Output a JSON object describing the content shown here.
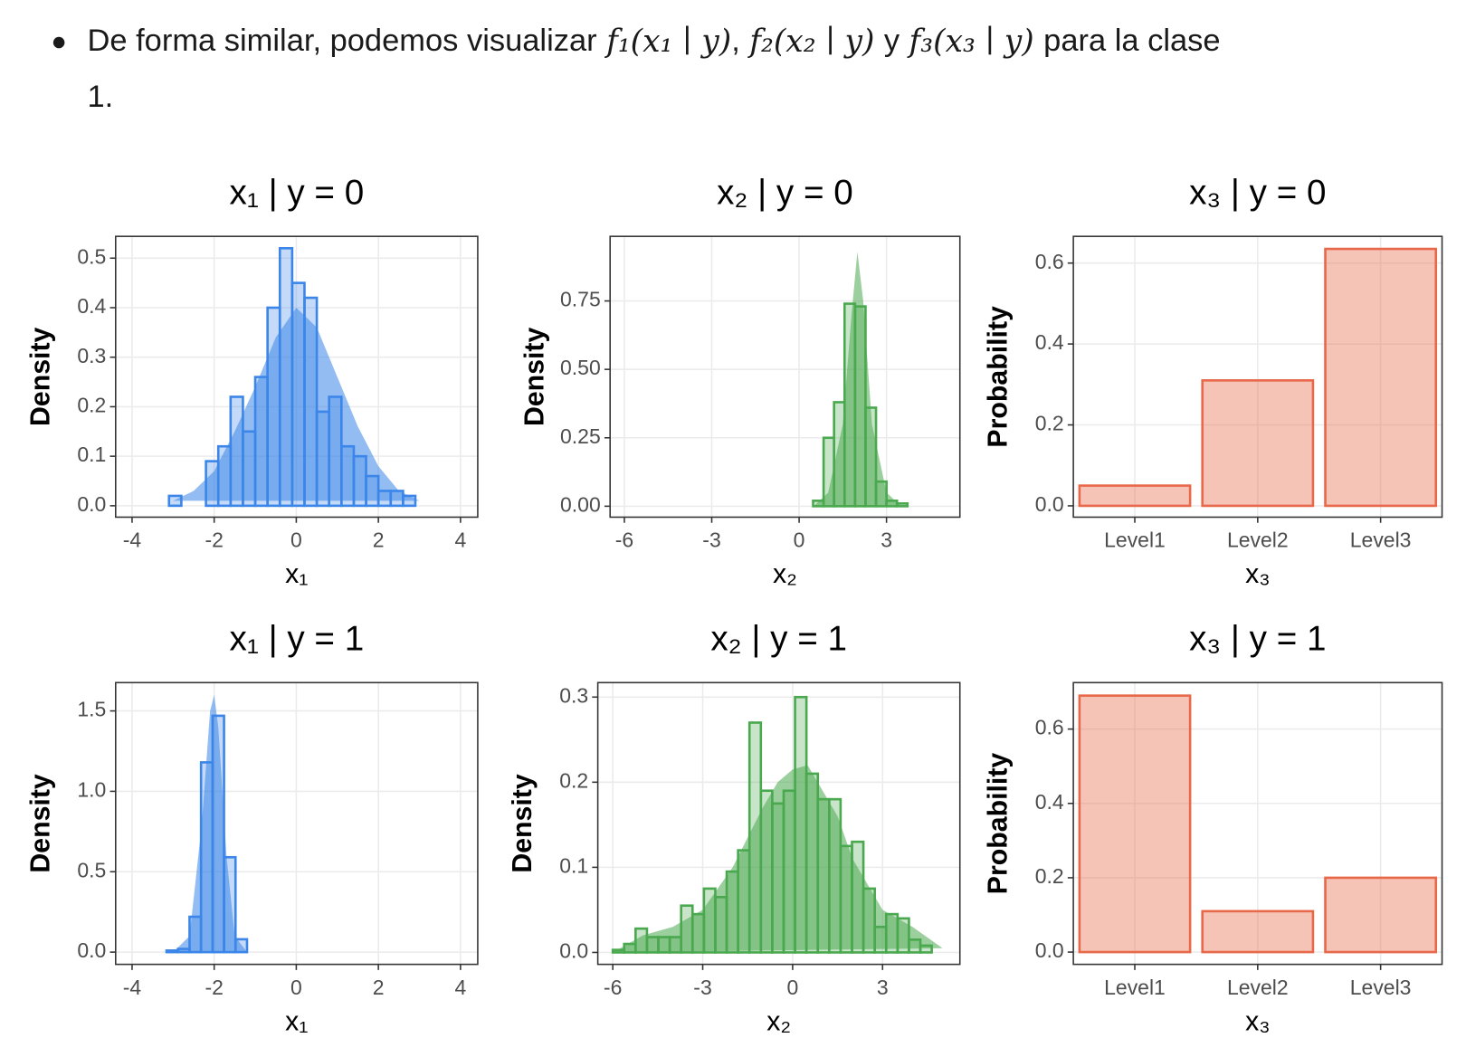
{
  "intro": {
    "line1": [
      {
        "text": "De forma similar, podemos visualizar",
        "math": false
      },
      {
        "text": "f₁(x₁ ∣ y)",
        "math": true
      },
      {
        "text": ",",
        "math": false
      },
      {
        "text": "f₂(x₂ ∣ y)",
        "math": true
      },
      {
        "text": "y",
        "math": false
      },
      {
        "text": "f₃(x₃ ∣ y)",
        "math": true
      },
      {
        "text": "para la clase",
        "math": false
      }
    ],
    "line2": "1."
  },
  "chart_data": [
    {
      "type": "histogram",
      "title": "x₁ | y = 0",
      "xlabel": "x₁",
      "ylabel": "Density",
      "color": "#3b86e8",
      "grid": true,
      "bins": [
        -4,
        -3.7,
        -3.4,
        -3.1,
        -2.8,
        -2.5,
        -2.2,
        -1.9,
        -1.6,
        -1.3,
        -1,
        -0.7,
        -0.4,
        -0.1,
        0.2,
        0.5,
        0.8,
        1.1,
        1.4,
        1.7,
        2,
        2.3,
        2.6,
        2.9,
        3.2,
        3.5,
        3.8
      ],
      "values": [
        0,
        0,
        0,
        0.02,
        0,
        0,
        0.09,
        0.12,
        0.22,
        0.15,
        0.26,
        0.4,
        0.52,
        0.45,
        0.42,
        0.19,
        0.22,
        0.12,
        0.1,
        0.06,
        0.03,
        0.03,
        0.02,
        0,
        0,
        0
      ],
      "density_x": [
        -3,
        -2.5,
        -2,
        -1.5,
        -1,
        -0.5,
        0,
        0.5,
        1,
        1.5,
        2,
        2.5,
        3
      ],
      "density_y": [
        0.01,
        0.03,
        0.07,
        0.15,
        0.24,
        0.34,
        0.4,
        0.36,
        0.26,
        0.16,
        0.08,
        0.03,
        0.01
      ],
      "xlim": [
        -4.4,
        4.42
      ],
      "ylim": [
        -0.023,
        0.544
      ],
      "xticks": [
        -4,
        -2,
        0,
        2,
        4
      ],
      "yticks": [
        {
          "value": 0,
          "label": "0.0"
        },
        0.1,
        0.2,
        0.3,
        0.4,
        0.5
      ]
    },
    {
      "type": "histogram",
      "title": "x₂ | y = 0",
      "xlabel": "x₂",
      "ylabel": "Density",
      "color": "#4aa84f",
      "grid": true,
      "bins": [
        -6,
        -5.64,
        -5.28,
        -4.92,
        -4.56,
        -4.2,
        -3.84,
        -3.48,
        -3.12,
        -2.76,
        -2.4,
        -2.04,
        -1.68,
        -1.32,
        -0.96,
        -0.6,
        -0.24,
        0.12,
        0.48,
        0.84,
        1.2,
        1.56,
        1.92,
        2.28,
        2.64,
        3,
        3.36,
        3.72,
        4.08,
        4.44,
        4.8
      ],
      "values": [
        0,
        0,
        0,
        0,
        0,
        0,
        0,
        0,
        0,
        0,
        0,
        0,
        0,
        0,
        0,
        0,
        0,
        0,
        0.02,
        0.25,
        0.38,
        0.74,
        0.73,
        0.36,
        0.09,
        0.02,
        0.01,
        0,
        0,
        0
      ],
      "density_x": [
        0.5,
        1,
        1.5,
        1.8,
        2,
        2.2,
        2.5,
        3,
        3.5
      ],
      "density_y": [
        0,
        0.05,
        0.3,
        0.7,
        0.93,
        0.75,
        0.3,
        0.05,
        0
      ],
      "xlim": [
        -6.49,
        5.52
      ],
      "ylim": [
        -0.04,
        0.986
      ],
      "xticks": [
        -6,
        -3,
        0,
        3
      ],
      "yticks": [
        {
          "value": 0,
          "label": "0.00"
        },
        0.25,
        {
          "value": 0.5,
          "label": "0.50"
        },
        0.75
      ]
    },
    {
      "type": "bar",
      "title": "x₃ | y = 0",
      "xlabel": "x₃",
      "ylabel": "Probability",
      "color": "#e8694a",
      "grid": true,
      "categories": [
        "Level1",
        "Level2",
        "Level3"
      ],
      "values": [
        0.05,
        0.31,
        0.635
      ],
      "ylim": [
        -0.028,
        0.666
      ],
      "yticks": [
        {
          "value": 0,
          "label": "0.0"
        },
        0.2,
        0.4,
        0.6
      ]
    },
    {
      "type": "histogram",
      "title": "x₁ | y = 1",
      "xlabel": "x₁",
      "ylabel": "Density",
      "color": "#3b86e8",
      "grid": true,
      "bins": [
        -4,
        -3.72,
        -3.44,
        -3.16,
        -2.88,
        -2.6,
        -2.32,
        -2.04,
        -1.76,
        -1.48,
        -1.2,
        -0.92,
        -0.64,
        -0.36,
        -0.08,
        0.2,
        0.48,
        0.76,
        1.04,
        1.32,
        1.6,
        1.88,
        2.16,
        2.44,
        2.72,
        3,
        3.28,
        3.56,
        3.84
      ],
      "values": [
        0,
        0,
        0,
        0.01,
        0.02,
        0.22,
        1.18,
        1.47,
        0.59,
        0.08,
        0,
        0,
        0,
        0,
        0,
        0,
        0,
        0,
        0,
        0,
        0,
        0,
        0,
        0,
        0,
        0,
        0,
        0
      ],
      "density_x": [
        -3,
        -2.6,
        -2.3,
        -2.1,
        -2,
        -1.9,
        -1.7,
        -1.5,
        -1.2
      ],
      "density_y": [
        0,
        0.1,
        0.8,
        1.5,
        1.6,
        1.4,
        0.6,
        0.1,
        0
      ],
      "xlim": [
        -4.4,
        4.42
      ],
      "ylim": [
        -0.076,
        1.676
      ],
      "xticks": [
        -4,
        -2,
        0,
        2,
        4
      ],
      "yticks": [
        {
          "value": 0,
          "label": "0.0"
        },
        0.5,
        {
          "value": 1,
          "label": "1.0"
        },
        1.5
      ]
    },
    {
      "type": "histogram",
      "title": "x₂ | y = 1",
      "xlabel": "x₂",
      "ylabel": "Density",
      "color": "#4aa84f",
      "grid": true,
      "bins": [
        -6,
        -5.62,
        -5.24,
        -4.86,
        -4.48,
        -4.1,
        -3.72,
        -3.34,
        -2.96,
        -2.58,
        -2.2,
        -1.82,
        -1.44,
        -1.06,
        -0.68,
        -0.3,
        0.08,
        0.46,
        0.84,
        1.22,
        1.6,
        1.98,
        2.36,
        2.74,
        3.12,
        3.5,
        3.88,
        4.26,
        4.64
      ],
      "values": [
        0.003,
        0.01,
        0.028,
        0.018,
        0.018,
        0.018,
        0.055,
        0.045,
        0.075,
        0.065,
        0.095,
        0.12,
        0.27,
        0.19,
        0.175,
        0.19,
        0.3,
        0.21,
        0.18,
        0.18,
        0.125,
        0.13,
        0.075,
        0.03,
        0.045,
        0.04,
        0.015,
        0.008
      ],
      "density_x": [
        -6,
        -5,
        -4,
        -3,
        -2,
        -1,
        -0.5,
        0,
        0.5,
        1,
        1.5,
        2,
        3,
        4,
        5
      ],
      "density_y": [
        0,
        0.02,
        0.03,
        0.05,
        0.1,
        0.17,
        0.2,
        0.215,
        0.22,
        0.19,
        0.16,
        0.11,
        0.05,
        0.03,
        0.005
      ],
      "xlim": [
        -6.5,
        5.58
      ],
      "ylim": [
        -0.014,
        0.317
      ],
      "xticks": [
        -6,
        -3,
        0,
        3
      ],
      "yticks": [
        {
          "value": 0,
          "label": "0.0"
        },
        0.1,
        0.2,
        0.3
      ]
    },
    {
      "type": "bar",
      "title": "x₃ | y = 1",
      "xlabel": "x₃",
      "ylabel": "Probability",
      "color": "#e8694a",
      "grid": true,
      "categories": [
        "Level1",
        "Level2",
        "Level3"
      ],
      "values": [
        0.69,
        0.11,
        0.2
      ],
      "ylim": [
        -0.033,
        0.725
      ],
      "yticks": [
        {
          "value": 0,
          "label": "0.0"
        },
        0.2,
        0.4,
        0.6
      ]
    }
  ]
}
